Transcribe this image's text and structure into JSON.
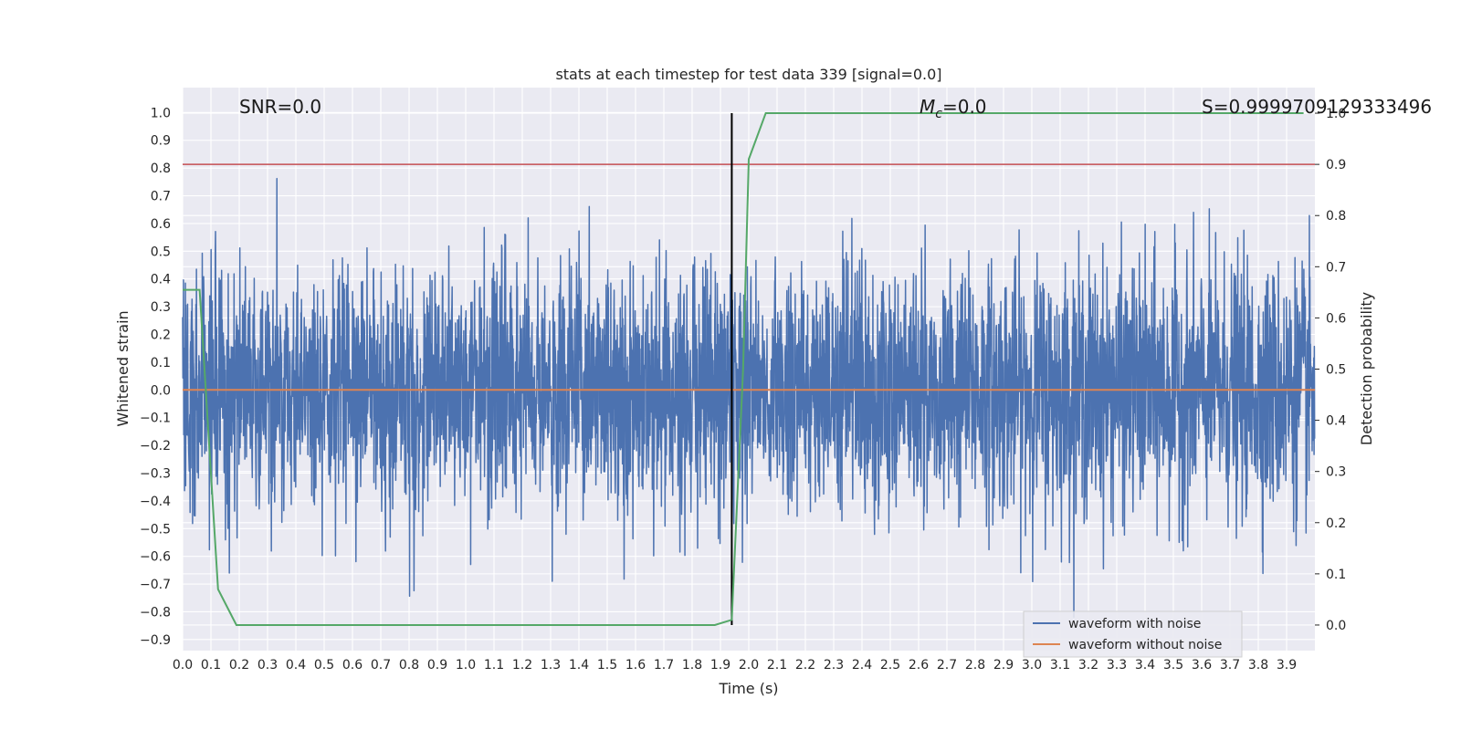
{
  "chart_data": {
    "type": "line",
    "title": "stats at each timestep for test data 339 [signal=0.0]",
    "xlabel": "Time (s)",
    "ylabel": "Whitened strain",
    "y2label": "Detection probability",
    "xlim": [
      0.0,
      4.0
    ],
    "ylim": [
      -0.94,
      1.09
    ],
    "y2lim": [
      -0.05,
      1.05
    ],
    "x_ticks": [
      0.0,
      0.1,
      0.2,
      0.3,
      0.4,
      0.5,
      0.6,
      0.7,
      0.8,
      0.9,
      1.0,
      1.1,
      1.2,
      1.3,
      1.4,
      1.5,
      1.6,
      1.7,
      1.8,
      1.9,
      2.0,
      2.1,
      2.2,
      2.3,
      2.4,
      2.5,
      2.6,
      2.7,
      2.8,
      2.9,
      3.0,
      3.1,
      3.2,
      3.3,
      3.4,
      3.5,
      3.6,
      3.7,
      3.8,
      3.9
    ],
    "y_ticks": [
      1.0,
      0.9,
      0.8,
      0.7,
      0.6,
      0.5,
      0.4,
      0.3,
      0.2,
      0.1,
      0.0,
      -0.1,
      -0.2,
      -0.3,
      -0.4,
      -0.5,
      -0.6,
      -0.7,
      -0.8,
      -0.9
    ],
    "y2_ticks": [
      1.0,
      0.9,
      0.8,
      0.7,
      0.6,
      0.5,
      0.4,
      0.3,
      0.2,
      0.1,
      0.0
    ],
    "grid": true,
    "legend_position": "lower-right",
    "series": [
      {
        "name": "waveform with noise",
        "color": "#4c72b0",
        "axis": "left",
        "kind": "noise",
        "sample_rate_hz": 1024,
        "amplitude_range": [
          -0.82,
          1.0
        ],
        "typical_std": 0.22
      },
      {
        "name": "waveform without noise",
        "color": "#dd8452",
        "axis": "left",
        "x": [
          0.0,
          4.0
        ],
        "y": [
          0.0,
          0.0
        ]
      },
      {
        "color": "#55a868",
        "axis": "right",
        "x": [
          0.0,
          0.06,
          0.125,
          0.19,
          1.88,
          1.94,
          1.98,
          2.0,
          2.06,
          3.96
        ],
        "y": [
          0.655,
          0.655,
          0.07,
          0.0,
          0.0,
          0.01,
          0.5,
          0.91,
          1.0,
          1.0
        ]
      },
      {
        "color": "#c44e52",
        "axis": "right",
        "kind": "hline",
        "y": 0.9
      },
      {
        "color": "#000000",
        "axis": "right",
        "kind": "vline",
        "x": 1.94,
        "y": [
          0.0,
          1.0
        ]
      }
    ],
    "annotations": {
      "snr": "SNR=0.0",
      "mc_prefix": "M",
      "mc_sub": "c",
      "mc_suffix": "=0.0",
      "s": "S=0.9999709129333496"
    }
  },
  "colors": {
    "plot_bg": "#eaeaf2",
    "grid": "#ffffff",
    "text": "#262626"
  }
}
